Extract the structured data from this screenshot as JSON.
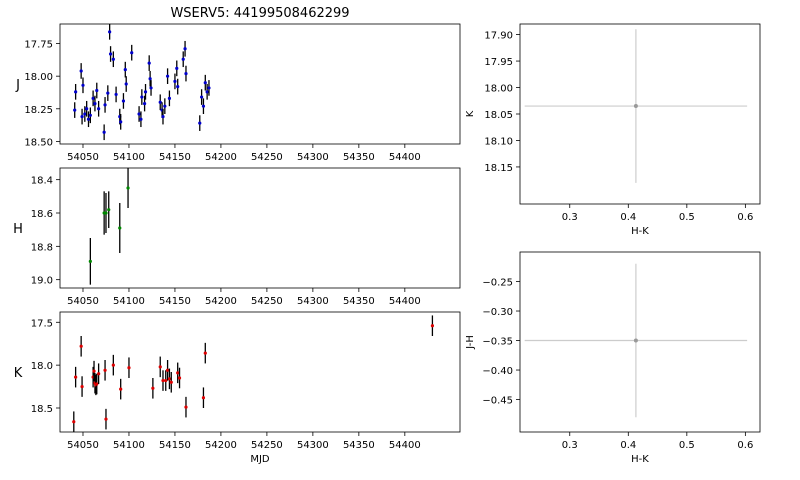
{
  "figure": {
    "title": "WSERV5: 44199508462299"
  },
  "colors": {
    "J": "#0000cc",
    "H": "#008800",
    "K": "#dd0000",
    "errorbar": "#000000",
    "color_marker": "#999999",
    "color_err": "#cccccc"
  },
  "chart_data": [
    {
      "type": "scatter",
      "band": "J",
      "ylabel": "J",
      "xlabel": "",
      "xlim": [
        54025,
        54460
      ],
      "ylim": [
        18.52,
        17.6
      ],
      "y_inverted": true,
      "xticks": [
        54050,
        54100,
        54150,
        54200,
        54250,
        54300,
        54350,
        54400
      ],
      "xtick_labels_shown": true,
      "yticks": [
        17.75,
        18.0,
        18.25,
        18.5
      ],
      "ytick_labels": [
        "17.75",
        "18.00",
        "18.25",
        "18.50"
      ],
      "err": 0.06,
      "x": [
        54041,
        54042,
        54048,
        54049,
        54050,
        54052,
        54054,
        54056,
        54058,
        54061,
        54063,
        54065,
        54067,
        54073,
        54074,
        54077,
        54079,
        54080,
        54083,
        54086,
        54090,
        54091,
        54094,
        54096,
        54097,
        54103,
        54111,
        54113,
        54114,
        54117,
        54118,
        54122,
        54123,
        54124,
        54134,
        54136,
        54137,
        54139,
        54142,
        54144,
        54150,
        54152,
        54153,
        54159,
        54161,
        54162,
        54177,
        54179,
        54181,
        54183,
        54185,
        54187
      ],
      "y": [
        18.26,
        18.12,
        17.96,
        18.31,
        18.07,
        18.29,
        18.25,
        18.33,
        18.3,
        18.17,
        18.21,
        18.11,
        18.25,
        18.43,
        18.22,
        18.13,
        17.66,
        17.83,
        17.87,
        18.14,
        18.31,
        18.35,
        18.19,
        17.95,
        18.06,
        17.82,
        18.29,
        18.33,
        18.16,
        18.21,
        18.12,
        17.9,
        18.02,
        18.09,
        18.2,
        18.26,
        18.31,
        18.23,
        18.0,
        18.17,
        18.04,
        17.94,
        18.08,
        17.87,
        17.79,
        17.98,
        18.36,
        18.16,
        18.23,
        18.05,
        18.12,
        18.09
      ]
    },
    {
      "type": "scatter",
      "band": "H",
      "ylabel": "H",
      "xlabel": "",
      "xlim": [
        54025,
        54460
      ],
      "ylim": [
        19.05,
        18.33
      ],
      "y_inverted": true,
      "xticks": [
        54050,
        54100,
        54150,
        54200,
        54250,
        54300,
        54350,
        54400
      ],
      "xtick_labels_shown": true,
      "yticks": [
        18.4,
        18.6,
        18.8,
        19.0
      ],
      "ytick_labels": [
        "18.4",
        "18.6",
        "18.8",
        "19.0"
      ],
      "x": [
        54058,
        54073,
        54075,
        54078,
        54090,
        54099
      ],
      "y": [
        18.89,
        18.6,
        18.6,
        18.58,
        18.69,
        18.45
      ],
      "err": [
        0.14,
        0.13,
        0.12,
        0.11,
        0.15,
        0.12
      ]
    },
    {
      "type": "scatter",
      "band": "K",
      "ylabel": "K",
      "xlabel": "MJD",
      "xlim": [
        54025,
        54460
      ],
      "ylim": [
        18.78,
        17.38
      ],
      "y_inverted": true,
      "xticks": [
        54050,
        54100,
        54150,
        54200,
        54250,
        54300,
        54350,
        54400
      ],
      "xtick_labels": [
        "54050",
        "54100",
        "54150",
        "54200",
        "54250",
        "54300",
        "54350",
        "54400"
      ],
      "yticks": [
        17.5,
        18.0,
        18.5
      ],
      "ytick_labels": [
        "17.5",
        "18.0",
        "18.5"
      ],
      "x": [
        54040,
        54042,
        54048,
        54049,
        54061,
        54062,
        54063,
        54064,
        54065,
        54067,
        54074,
        54075,
        54083,
        54091,
        54100,
        54126,
        54134,
        54137,
        54140,
        54142,
        54144,
        54146,
        54153,
        54155,
        54162,
        54181,
        54183,
        54430
      ],
      "y": [
        18.66,
        18.14,
        17.78,
        18.25,
        18.14,
        18.07,
        18.21,
        18.23,
        18.22,
        18.1,
        18.06,
        18.63,
        18.0,
        18.28,
        18.03,
        18.27,
        18.02,
        18.18,
        18.18,
        18.06,
        18.16,
        18.2,
        18.09,
        18.15,
        18.49,
        18.38,
        17.86,
        17.54
      ],
      "err": 0.12
    },
    {
      "type": "scatter",
      "band": "color-magnitude",
      "xlabel": "H-K",
      "ylabel": "K",
      "xlim": [
        0.215,
        0.625
      ],
      "ylim": [
        18.22,
        17.88
      ],
      "y_inverted": true,
      "xticks": [
        0.3,
        0.4,
        0.5,
        0.6
      ],
      "xtick_labels": [
        "0.3",
        "0.4",
        "0.5",
        "0.6"
      ],
      "yticks": [
        17.9,
        17.95,
        18.0,
        18.05,
        18.1,
        18.15
      ],
      "ytick_labels": [
        "17.90",
        "17.95",
        "18.00",
        "18.05",
        "18.10",
        "18.15"
      ],
      "x": [
        0.413
      ],
      "y": [
        18.035
      ],
      "xerr": 0.19,
      "yerr": 0.145
    },
    {
      "type": "scatter",
      "band": "color-color",
      "xlabel": "H-K",
      "ylabel": "J-H",
      "xlim": [
        0.215,
        0.625
      ],
      "ylim": [
        -0.505,
        -0.2
      ],
      "y_inverted": false,
      "xticks": [
        0.3,
        0.4,
        0.5,
        0.6
      ],
      "xtick_labels": [
        "0.3",
        "0.4",
        "0.5",
        "0.6"
      ],
      "yticks": [
        -0.25,
        -0.3,
        -0.35,
        -0.4,
        -0.45
      ],
      "ytick_labels": [
        "−0.25",
        "−0.30",
        "−0.35",
        "−0.40",
        "−0.45"
      ],
      "x": [
        0.413
      ],
      "y": [
        -0.35
      ],
      "xerr": 0.19,
      "yerr": 0.13
    }
  ]
}
